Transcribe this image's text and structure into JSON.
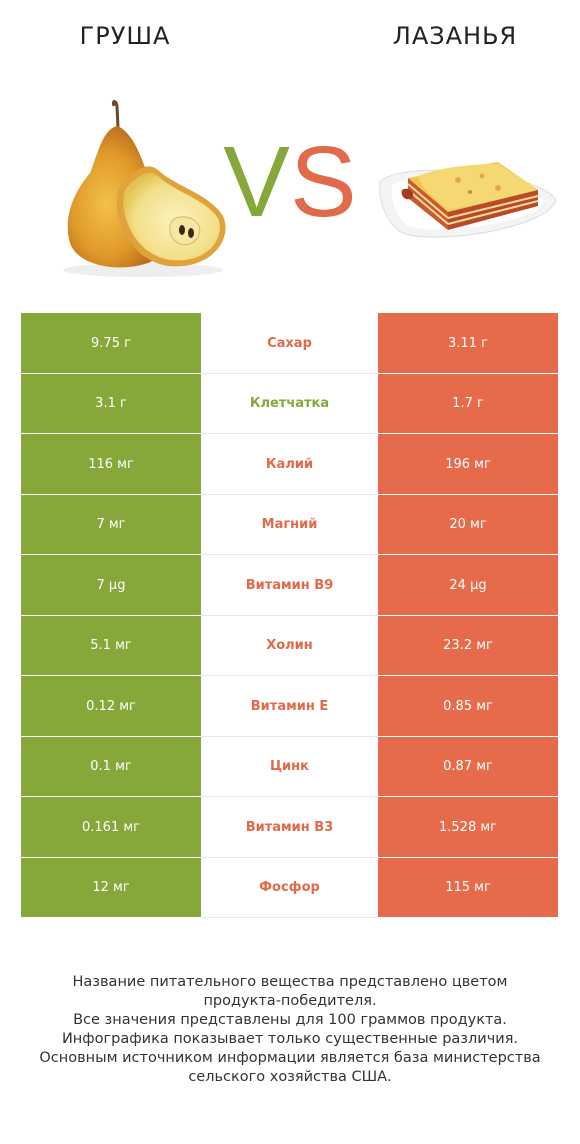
{
  "header": {
    "left_title": "Груша",
    "right_title": "Лазанья",
    "vs_v": "V",
    "vs_s": "S"
  },
  "colors": {
    "left": "#86a73a",
    "right": "#e56b4b"
  },
  "rows": [
    {
      "nutrient": "Сахар",
      "left": "9.75 г",
      "right": "3.11 г",
      "winner": "right"
    },
    {
      "nutrient": "Клетчатка",
      "left": "3.1 г",
      "right": "1.7 г",
      "winner": "left"
    },
    {
      "nutrient": "Калий",
      "left": "116 мг",
      "right": "196 мг",
      "winner": "right"
    },
    {
      "nutrient": "Магний",
      "left": "7 мг",
      "right": "20 мг",
      "winner": "right"
    },
    {
      "nutrient": "Витамин B9",
      "left": "7 µg",
      "right": "24 µg",
      "winner": "right"
    },
    {
      "nutrient": "Холин",
      "left": "5.1 мг",
      "right": "23.2 мг",
      "winner": "right"
    },
    {
      "nutrient": "Витамин E",
      "left": "0.12 мг",
      "right": "0.85 мг",
      "winner": "right"
    },
    {
      "nutrient": "Цинк",
      "left": "0.1 мг",
      "right": "0.87 мг",
      "winner": "right"
    },
    {
      "nutrient": "Витамин B3",
      "left": "0.161 мг",
      "right": "1.528 мг",
      "winner": "right"
    },
    {
      "nutrient": "Фосфор",
      "left": "12 мг",
      "right": "115 мг",
      "winner": "right"
    }
  ],
  "footer": {
    "lines": [
      "Название питательного вещества представлено цветом",
      "продукта-победителя.",
      "Все значения представлены для 100 граммов продукта.",
      "Инфографика показывает только существенные различия.",
      "Основным источником информации является база министерства",
      "сельского хозяйства США."
    ]
  }
}
